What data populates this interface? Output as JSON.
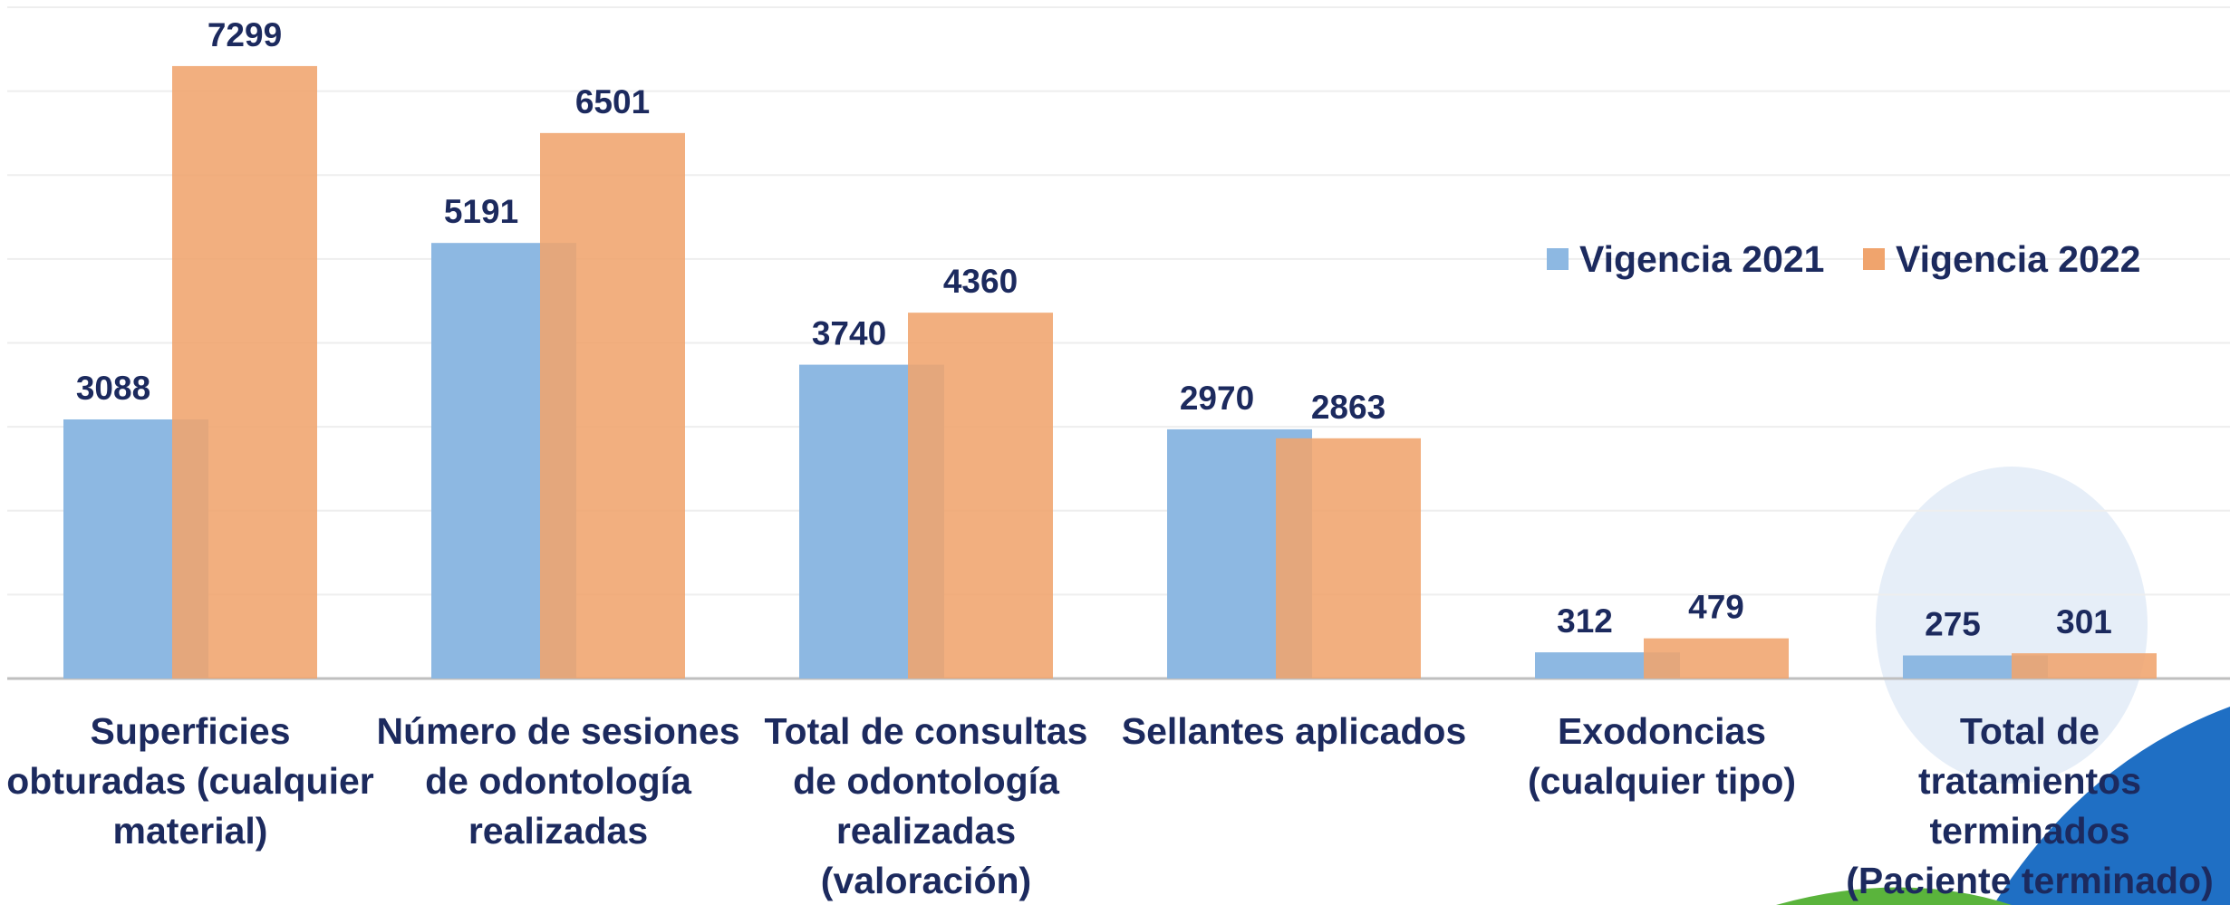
{
  "chart_data": {
    "type": "bar",
    "categories": [
      "Superficies obturadas (cualquier material)",
      "Número de sesiones de odontología realizadas",
      "Total de consultas de odontología realizadas (valoración)",
      "Sellantes aplicados",
      "Exodoncias (cualquier tipo)",
      "Total de tratamientos terminados (Paciente terminado)"
    ],
    "series": [
      {
        "name": "Vigencia 2021",
        "color": "#8db8e2",
        "values": [
          3088,
          5191,
          3740,
          2970,
          312,
          275
        ]
      },
      {
        "name": "Vigencia 2022",
        "color": "#f0a46d",
        "values": [
          7299,
          6501,
          4360,
          2863,
          479,
          301
        ]
      }
    ],
    "ylim": [
      0,
      8000
    ],
    "yticks": [
      0,
      1000,
      2000,
      3000,
      4000,
      5000,
      6000,
      7000,
      8000
    ],
    "grid": true
  }
}
